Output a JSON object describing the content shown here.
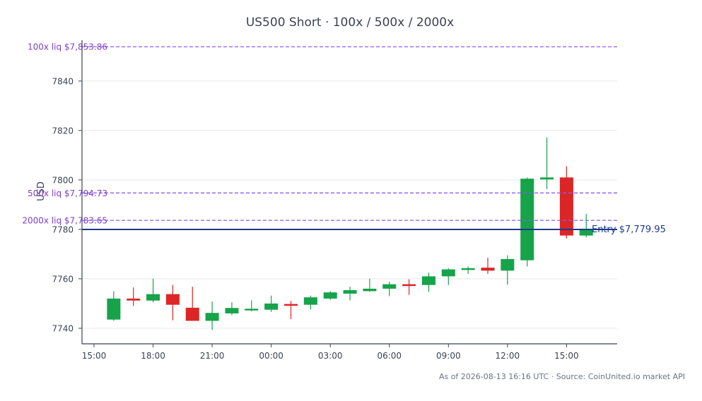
{
  "chart_data": {
    "type": "candlestick",
    "title": "US500 Short · 100x / 500x / 2000x",
    "ylabel": "USD",
    "xlabel": "",
    "footer": "As of 2026-08-13 16:16 UTC · Source: CoinUnited.io market API",
    "ylim": [
      7733.7,
      7856.5
    ],
    "xlim": [
      "15:00",
      "18:00"
    ],
    "y_ticks": [
      7740,
      7760,
      7780,
      7800,
      7820,
      7840
    ],
    "x_ticks": [
      "15:00",
      "18:00",
      "21:00",
      "00:00",
      "03:00",
      "06:00",
      "09:00",
      "12:00",
      "15:00"
    ],
    "grid": "horizontal",
    "colors": {
      "up": "#16a34a",
      "down": "#dc2626",
      "entry": "#1e3a8a",
      "liq": "#7e3fc9",
      "axis": "#3b4252",
      "grid": "#e8e8e8"
    },
    "candles": [
      {
        "t": "16:00",
        "o": 7743.5,
        "h": 7755.0,
        "l": 7743.0,
        "c": 7752.0
      },
      {
        "t": "17:00",
        "o": 7752.0,
        "h": 7756.5,
        "l": 7749.0,
        "c": 7751.2
      },
      {
        "t": "18:00",
        "o": 7751.2,
        "h": 7760.0,
        "l": 7750.5,
        "c": 7753.8
      },
      {
        "t": "19:00",
        "o": 7753.8,
        "h": 7757.5,
        "l": 7743.2,
        "c": 7749.5
      },
      {
        "t": "20:00",
        "o": 7748.3,
        "h": 7756.8,
        "l": 7743.0,
        "c": 7743.0
      },
      {
        "t": "21:00",
        "o": 7743.0,
        "h": 7750.8,
        "l": 7739.3,
        "c": 7746.2
      },
      {
        "t": "22:00",
        "o": 7746.0,
        "h": 7750.5,
        "l": 7745.3,
        "c": 7748.2
      },
      {
        "t": "23:00",
        "o": 7747.5,
        "h": 7751.3,
        "l": 7746.8,
        "c": 7747.9
      },
      {
        "t": "00:00",
        "o": 7747.5,
        "h": 7753.2,
        "l": 7746.6,
        "c": 7750.0
      },
      {
        "t": "01:00",
        "o": 7749.8,
        "h": 7751.0,
        "l": 7743.7,
        "c": 7749.5
      },
      {
        "t": "02:00",
        "o": 7749.5,
        "h": 7753.2,
        "l": 7747.6,
        "c": 7752.5
      },
      {
        "t": "03:00",
        "o": 7752.0,
        "h": 7755.0,
        "l": 7751.5,
        "c": 7754.5
      },
      {
        "t": "04:00",
        "o": 7754.0,
        "h": 7756.8,
        "l": 7751.3,
        "c": 7755.4
      },
      {
        "t": "05:00",
        "o": 7755.0,
        "h": 7760.0,
        "l": 7754.8,
        "c": 7756.0
      },
      {
        "t": "06:00",
        "o": 7756.0,
        "h": 7758.8,
        "l": 7753.0,
        "c": 7757.8
      },
      {
        "t": "07:00",
        "o": 7757.8,
        "h": 7759.8,
        "l": 7753.5,
        "c": 7757.2
      },
      {
        "t": "08:00",
        "o": 7757.5,
        "h": 7762.5,
        "l": 7754.7,
        "c": 7761.0
      },
      {
        "t": "09:00",
        "o": 7761.0,
        "h": 7764.3,
        "l": 7757.5,
        "c": 7763.8
      },
      {
        "t": "10:00",
        "o": 7763.8,
        "h": 7765.0,
        "l": 7762.0,
        "c": 7764.3
      },
      {
        "t": "11:00",
        "o": 7764.5,
        "h": 7768.5,
        "l": 7762.0,
        "c": 7763.3
      },
      {
        "t": "12:00",
        "o": 7763.3,
        "h": 7769.5,
        "l": 7757.6,
        "c": 7768.0
      },
      {
        "t": "13:00",
        "o": 7767.5,
        "h": 7801.0,
        "l": 7765.0,
        "c": 7800.5
      },
      {
        "t": "14:00",
        "o": 7800.2,
        "h": 7817.2,
        "l": 7796.3,
        "c": 7801.0
      },
      {
        "t": "15:00",
        "o": 7801.0,
        "h": 7805.5,
        "l": 7776.3,
        "c": 7777.5
      },
      {
        "t": "16:00",
        "o": 7777.5,
        "h": 7786.2,
        "l": 7776.8,
        "c": 7780.0
      }
    ],
    "levels": [
      {
        "name": "liq-100x",
        "label": "100x liq $7,853.86",
        "value": 7853.86,
        "style": "dashed"
      },
      {
        "name": "liq-500x",
        "label": "500x liq $7,794.73",
        "value": 7794.73,
        "style": "dashed"
      },
      {
        "name": "liq-2000x",
        "label": "2000x liq $7,783.65",
        "value": 7783.65,
        "style": "dashed"
      },
      {
        "name": "entry",
        "label": "Entry $7,779.95",
        "value": 7779.95,
        "style": "solid"
      }
    ]
  }
}
